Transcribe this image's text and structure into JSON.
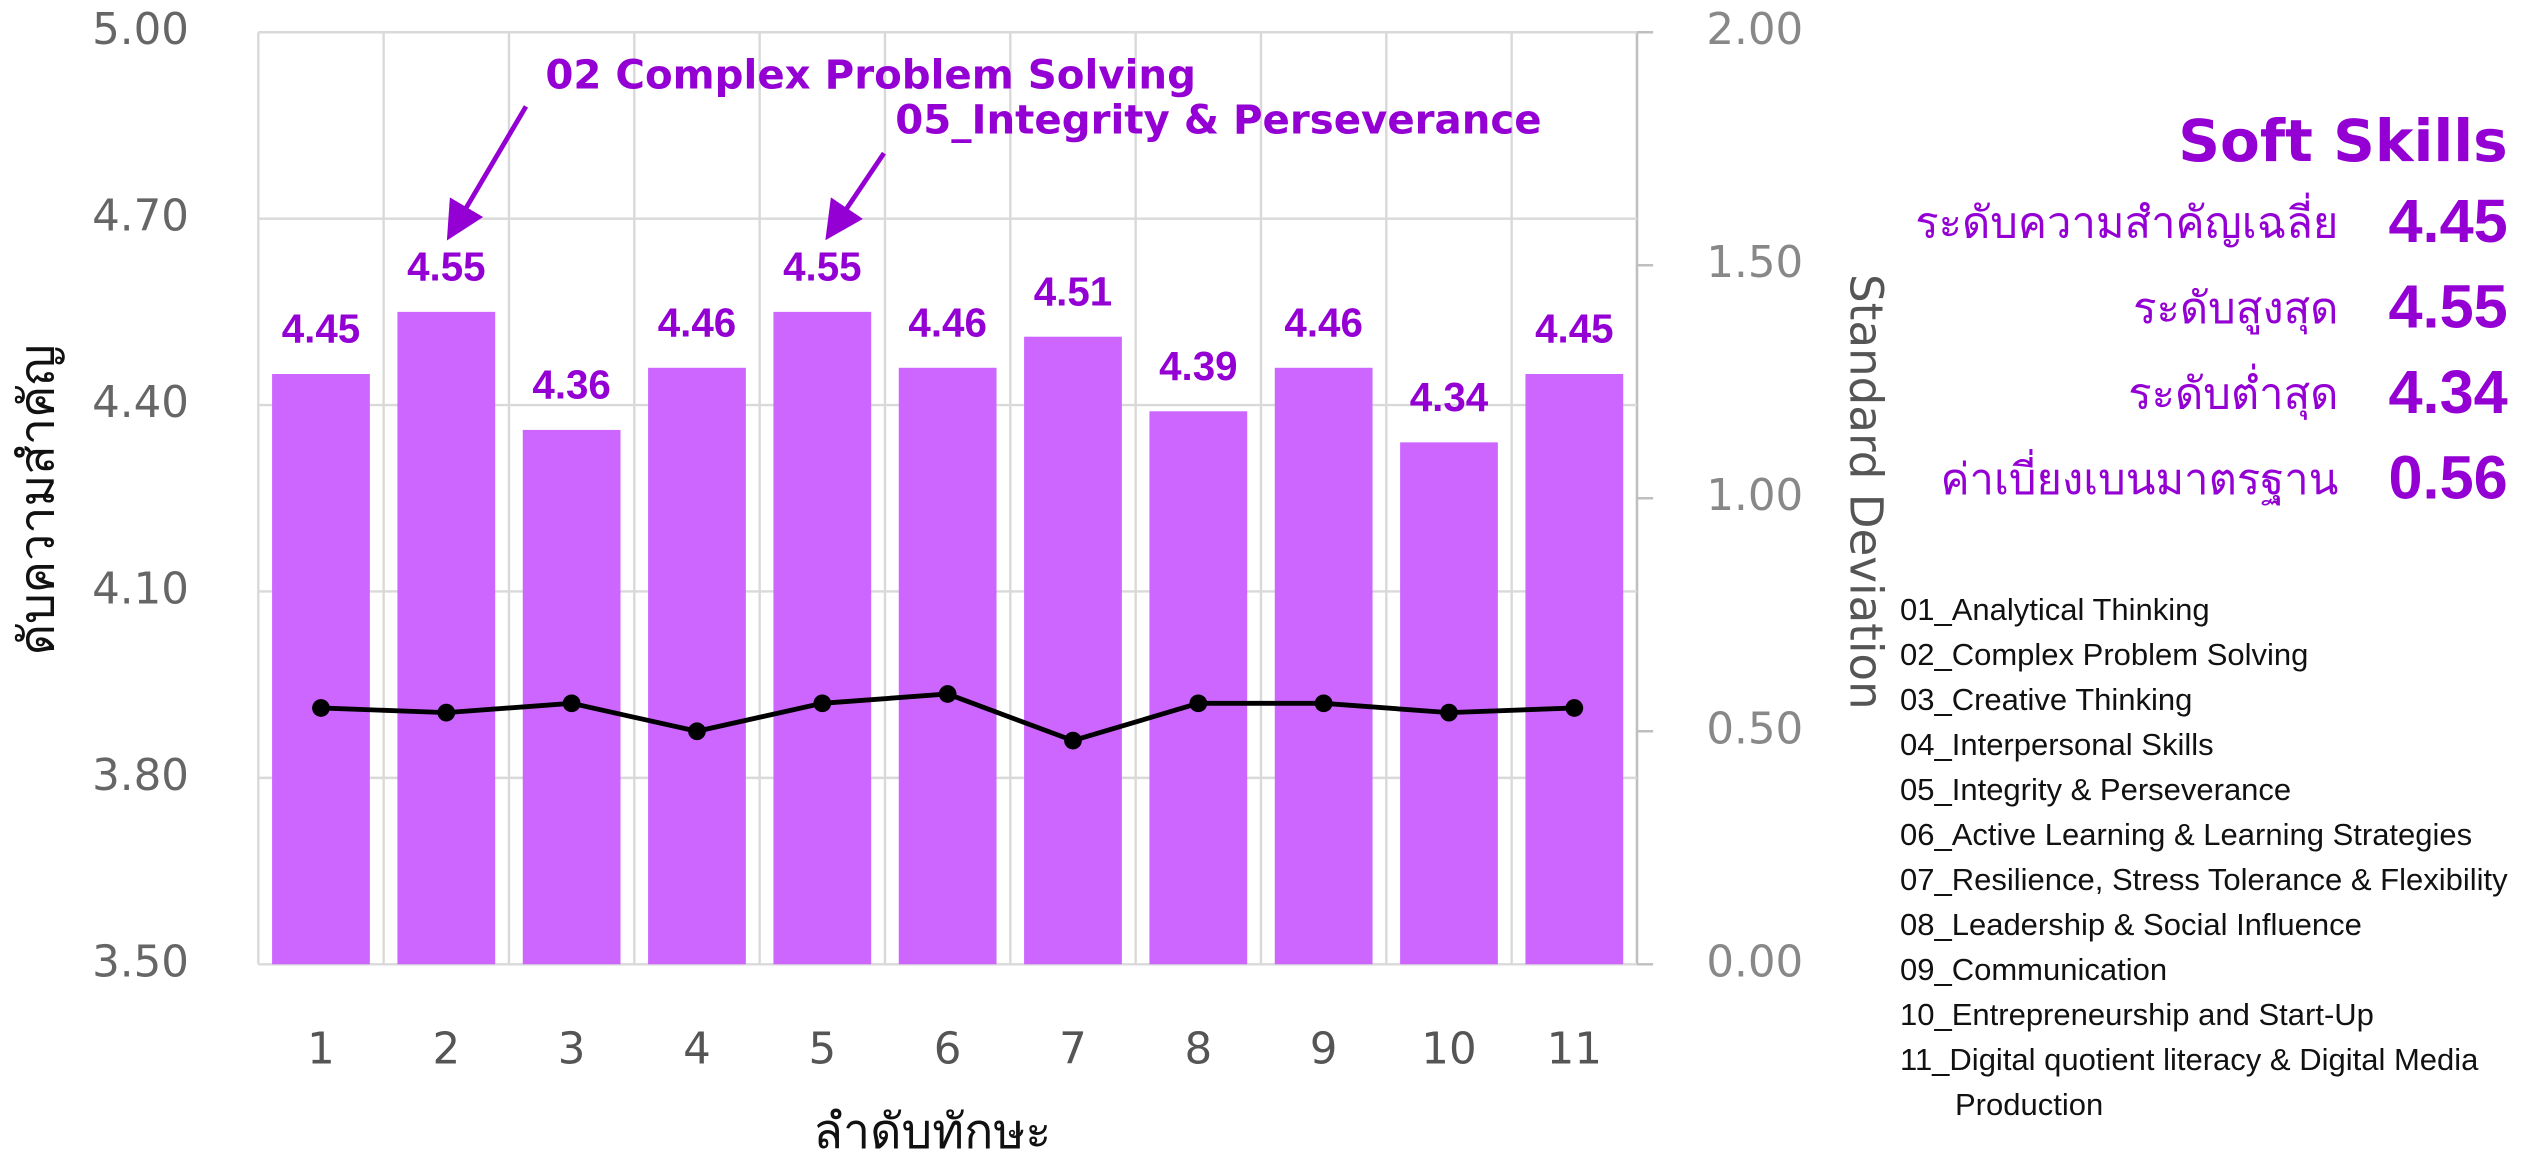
{
  "chart_data": {
    "type": "bar",
    "y_label": "ดับความสำคัญ",
    "x_label": "ลำดับทักษะ",
    "y2_label": "Standard Deviation",
    "annotations": [
      "02 Complex Problem Solving",
      "05_Integrity & Perseverance"
    ],
    "categories": [
      "1",
      "2",
      "3",
      "4",
      "5",
      "6",
      "7",
      "8",
      "9",
      "10",
      "11"
    ],
    "series": [
      {
        "name": "ระดับความสำคัญ",
        "type": "bar",
        "color": "#cc66ff",
        "label_color": "#9400d3",
        "values": [
          4.45,
          4.55,
          4.36,
          4.46,
          4.55,
          4.46,
          4.51,
          4.39,
          4.46,
          4.34,
          4.45
        ]
      },
      {
        "name": "Standard Deviation",
        "type": "line",
        "axis": "y2",
        "color": "#000000",
        "values": [
          0.55,
          0.54,
          0.56,
          0.5,
          0.56,
          0.58,
          0.48,
          0.56,
          0.56,
          0.54,
          0.55
        ]
      }
    ],
    "ylim": [
      3.5,
      5.0
    ],
    "yticks": [
      {
        "value": 3.5,
        "label": "3.50"
      },
      {
        "value": 3.8,
        "label": "3.80"
      },
      {
        "value": 4.1,
        "label": "4.10"
      },
      {
        "value": 4.4,
        "label": "4.40"
      },
      {
        "value": 4.7,
        "label": "4.70"
      },
      {
        "value": 5.0,
        "label": "5.00"
      }
    ],
    "y2lim": [
      0,
      2.0
    ],
    "y2ticks": [
      {
        "value": 0,
        "label": "0.00"
      },
      {
        "value": 0.5,
        "label": "0.50"
      },
      {
        "value": 1.0,
        "label": "1.00"
      },
      {
        "value": 1.5,
        "label": "1.50"
      },
      {
        "value": 2.0,
        "label": "2.00"
      }
    ],
    "grid": true
  },
  "side_panel": {
    "title": "Soft Skills",
    "stats": [
      {
        "label": "ระดับความสำคัญเฉลี่ย",
        "value": 4.45
      },
      {
        "label": "ระดับสูงสุด",
        "value": 4.55
      },
      {
        "label": "ระดับต่ำสุด",
        "value": 4.34
      },
      {
        "label": "ค่าเบี่ยงเบนมาตรฐาน",
        "value": 0.56
      }
    ],
    "skills": [
      "01_Analytical Thinking",
      "02_Complex Problem Solving",
      "03_Creative Thinking",
      "04_Interpersonal Skills",
      "05_Integrity & Perseverance",
      "06_Active Learning & Learning Strategies",
      "07_Resilience, Stress Tolerance & Flexibility",
      "08_Leadership & Social Influence",
      "09_Communication",
      "10_Entrepreneurship and Start-Up",
      "11_Digital quotient literacy & Digital Media Production"
    ]
  }
}
